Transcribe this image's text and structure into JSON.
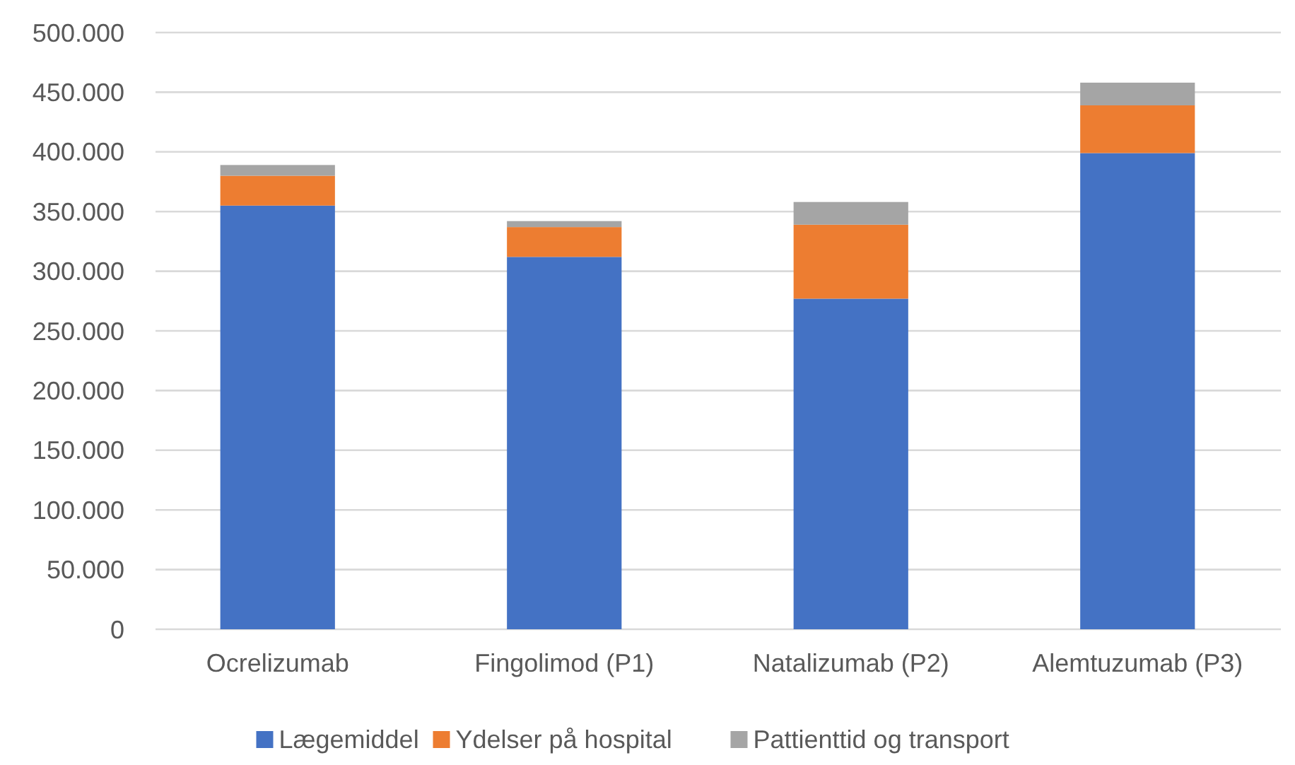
{
  "chart_data": {
    "type": "bar",
    "stacked": true,
    "categories": [
      "Ocrelizumab",
      "Fingolimod (P1)",
      "Natalizumab (P2)",
      "Alemtuzumab (P3)"
    ],
    "series": [
      {
        "name": "Lægemiddel",
        "color": "#4472c4",
        "values": [
          355000,
          312000,
          277000,
          399000
        ]
      },
      {
        "name": "Ydelser på hospital",
        "color": "#ed7d31",
        "values": [
          25000,
          25000,
          62000,
          40000
        ]
      },
      {
        "name": "Pattienttid og transport",
        "color": "#a5a5a5",
        "values": [
          9000,
          5000,
          19000,
          19000
        ]
      }
    ],
    "ylim": [
      0,
      500000
    ],
    "yticks": [
      {
        "value": 0,
        "label": "0"
      },
      {
        "value": 50000,
        "label": "50.000"
      },
      {
        "value": 100000,
        "label": "100.000"
      },
      {
        "value": 150000,
        "label": "150.000"
      },
      {
        "value": 200000,
        "label": "200.000"
      },
      {
        "value": 250000,
        "label": "250.000"
      },
      {
        "value": 300000,
        "label": "300.000"
      },
      {
        "value": 350000,
        "label": "350.000"
      },
      {
        "value": 400000,
        "label": "400.000"
      },
      {
        "value": 450000,
        "label": "450.000"
      },
      {
        "value": 500000,
        "label": "500.000"
      }
    ],
    "grid": "y",
    "legend": "bottom"
  }
}
